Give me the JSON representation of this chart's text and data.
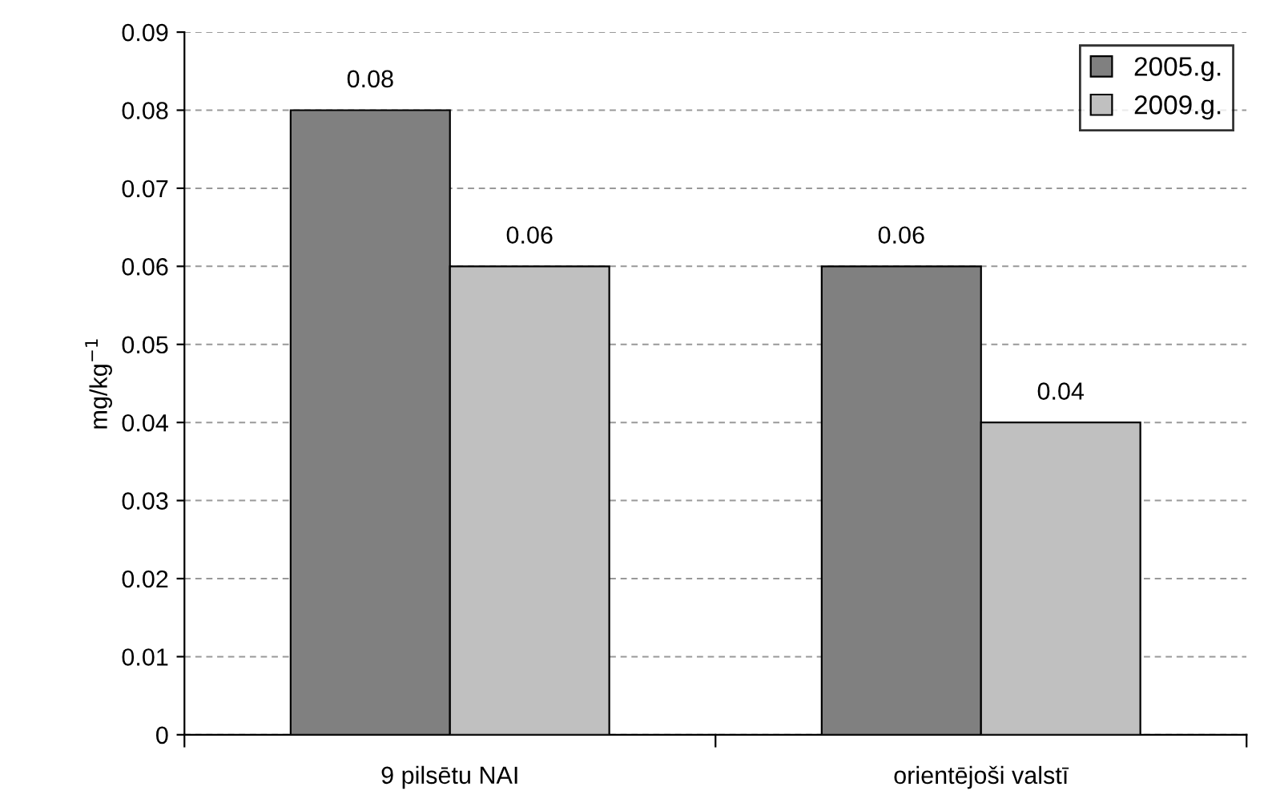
{
  "chart_data": {
    "type": "bar",
    "ylabel": "mg/kg$^{−1}$",
    "categories": [
      "9 pilsētu NAI",
      "orientējoši valstī"
    ],
    "series": [
      {
        "name": "2005.g.",
        "color": "#808080",
        "values": [
          0.08,
          0.06
        ]
      },
      {
        "name": "2009.g.",
        "color": "#c0c0c0",
        "values": [
          0.06,
          0.04
        ]
      }
    ],
    "ylim": [
      0,
      0.09
    ],
    "yticks": [
      0,
      0.01,
      0.02,
      0.03,
      0.04,
      0.05,
      0.06,
      0.07,
      0.08,
      0.09
    ],
    "grid": "y",
    "legend": "top right",
    "data_labels": true
  }
}
